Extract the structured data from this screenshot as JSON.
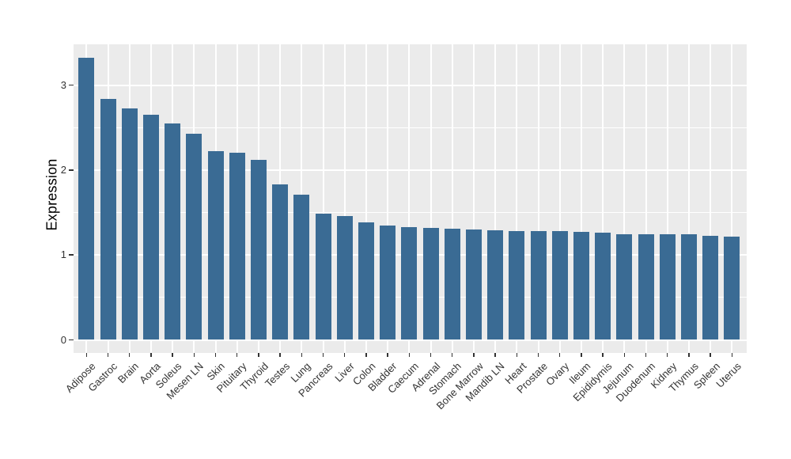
{
  "chart_data": {
    "type": "bar",
    "title": "",
    "xlabel": "",
    "ylabel": "Expression",
    "categories": [
      "Adipose",
      "Gastroc",
      "Brain",
      "Aorta",
      "Soleus",
      "Mesen LN",
      "Skin",
      "Pituitary",
      "Thyroid",
      "Testes",
      "Lung",
      "Pancreas",
      "Liver",
      "Colon",
      "Bladder",
      "Caecum",
      "Adrenal",
      "Stomach",
      "Bone Marrow",
      "Mandib LN",
      "Heart",
      "Prostate",
      "Ovary",
      "Ileum",
      "Epididymis",
      "Jejunum",
      "Duodenum",
      "Kidney",
      "Thymus",
      "Spleen",
      "Uterus"
    ],
    "values": [
      3.32,
      2.84,
      2.73,
      2.65,
      2.55,
      2.43,
      2.22,
      2.2,
      2.12,
      1.83,
      1.71,
      1.49,
      1.46,
      1.38,
      1.35,
      1.33,
      1.32,
      1.31,
      1.3,
      1.29,
      1.28,
      1.28,
      1.28,
      1.27,
      1.26,
      1.24,
      1.24,
      1.24,
      1.24,
      1.23,
      1.22
    ],
    "yticks": [
      0,
      1,
      2,
      3
    ],
    "yticks_minor": [
      0.5,
      1.5,
      2.5
    ],
    "ylim": [
      -0.18,
      3.48
    ],
    "x_tick_angle_deg": 45,
    "grid": "white major+minor horizontal, white major vertical per category, gray panel",
    "legend": "none",
    "colors": {
      "bar": "#3A6B94",
      "panel_bg": "#EBEBEB",
      "grid": "#FFFFFF",
      "tick_label": "#333333",
      "axis_title": "#000000",
      "page_bg": "#FFFFFF"
    }
  }
}
